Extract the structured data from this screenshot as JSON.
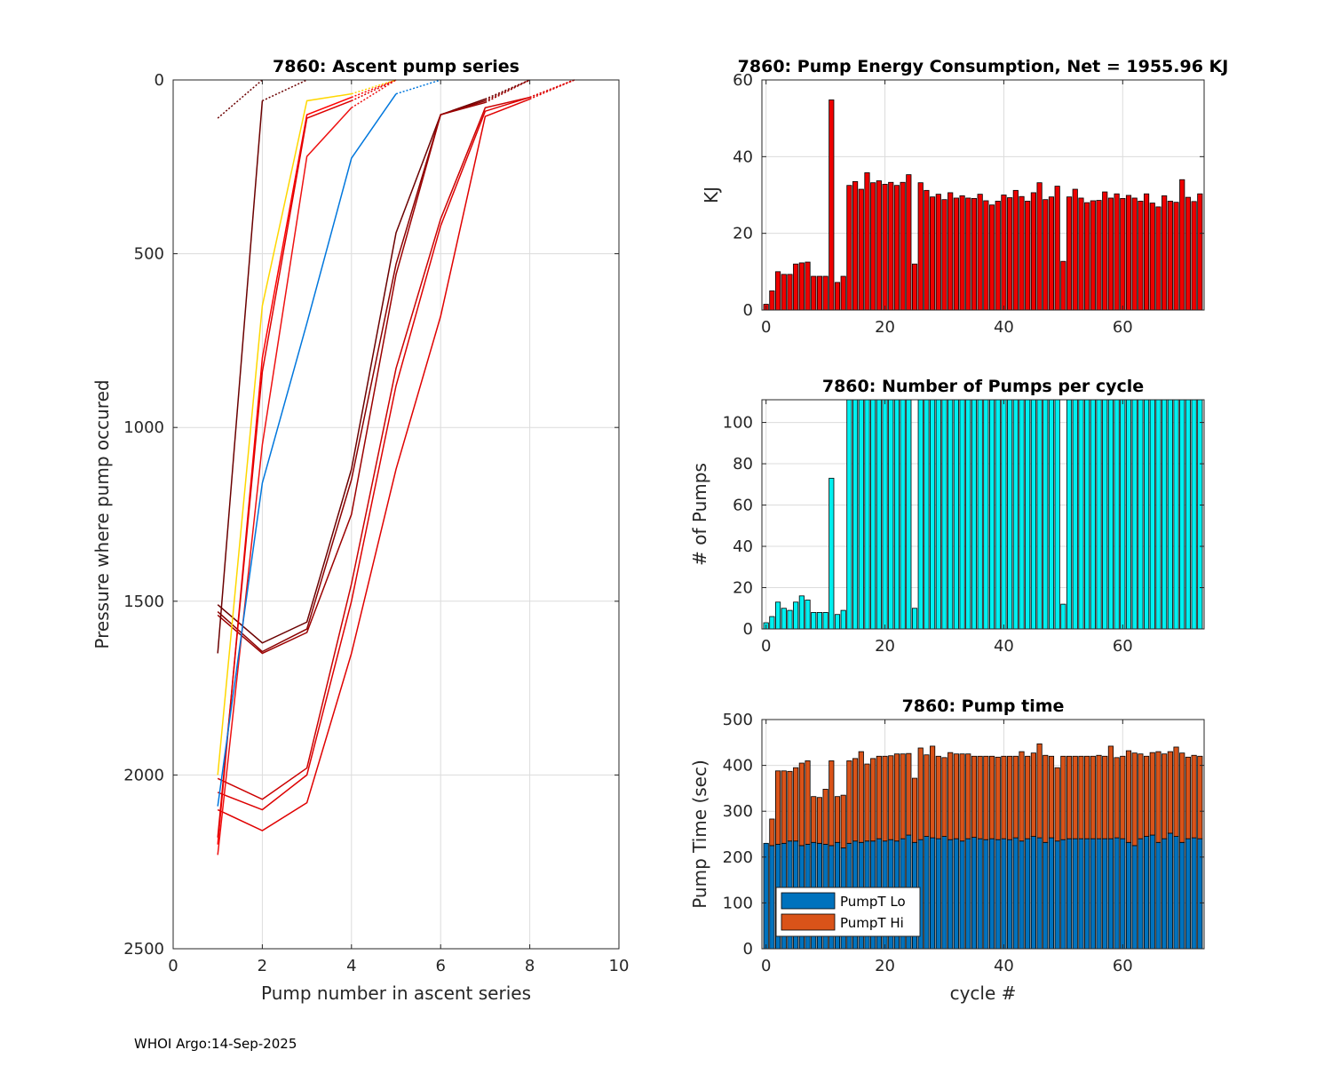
{
  "footer": "WHOI Argo:14-Sep-2025",
  "chart_data": [
    {
      "type": "line",
      "title": "7860: Ascent pump series",
      "xlabel": "Pump number in ascent series",
      "ylabel": "Pressure where pump occured",
      "xlim": [
        0,
        10
      ],
      "ylim": [
        0,
        2500
      ],
      "y_reversed": true,
      "xticks": [
        0,
        2,
        4,
        6,
        8,
        10
      ],
      "yticks": [
        0,
        500,
        1000,
        1500,
        2000,
        2500
      ],
      "grid": true,
      "series": [
        {
          "color": "#6b0000",
          "x": [
            1,
            2,
            3,
            4,
            5,
            6,
            7,
            8
          ],
          "y": [
            1510,
            1620,
            1560,
            1120,
            440,
            100,
            55,
            0
          ]
        },
        {
          "color": "#8b0000",
          "x": [
            1,
            2,
            3,
            4,
            5,
            6,
            7,
            8
          ],
          "y": [
            1530,
            1645,
            1580,
            1150,
            530,
            100,
            60,
            0
          ]
        },
        {
          "color": "#9b0000",
          "x": [
            1,
            2,
            3,
            4,
            5,
            6,
            7,
            8
          ],
          "y": [
            1540,
            1650,
            1590,
            1250,
            560,
            100,
            65,
            0
          ]
        },
        {
          "color": "#6b0000",
          "x": [
            1,
            2,
            3
          ],
          "y": [
            1650,
            60,
            0
          ]
        },
        {
          "color": "#6b0000",
          "x": [
            1,
            2
          ],
          "y": [
            110,
            0
          ]
        },
        {
          "color": "#cc0000",
          "x": [
            1,
            2,
            3,
            4,
            5,
            6,
            7,
            8,
            9
          ],
          "y": [
            2010,
            2070,
            1980,
            1450,
            830,
            400,
            80,
            50,
            0
          ]
        },
        {
          "color": "#dd0000",
          "x": [
            1,
            2,
            3,
            4,
            5,
            6,
            7,
            8,
            9
          ],
          "y": [
            2050,
            2100,
            2000,
            1500,
            880,
            420,
            90,
            50,
            0
          ]
        },
        {
          "color": "#e00000",
          "x": [
            1,
            2,
            3,
            4,
            5,
            6,
            7,
            8,
            9
          ],
          "y": [
            2100,
            2160,
            2080,
            1650,
            1120,
            680,
            105,
            55,
            0
          ]
        },
        {
          "color": "#ff0000",
          "x": [
            1,
            2,
            3,
            4,
            5
          ],
          "y": [
            2200,
            800,
            100,
            50,
            0
          ]
        },
        {
          "color": "#ee1111",
          "x": [
            1,
            2,
            3,
            4,
            5
          ],
          "y": [
            2230,
            1050,
            220,
            80,
            0
          ]
        },
        {
          "color": "#dd0000",
          "x": [
            1,
            2,
            3,
            4,
            5
          ],
          "y": [
            2180,
            840,
            110,
            60,
            0
          ]
        },
        {
          "color": "#ffd700",
          "x": [
            1,
            2,
            3,
            4,
            5
          ],
          "y": [
            2000,
            650,
            60,
            40,
            0
          ]
        },
        {
          "color": "#0077dd",
          "x": [
            1,
            2,
            3,
            4,
            5,
            6
          ],
          "y": [
            2090,
            1160,
            700,
            225,
            40,
            0
          ]
        }
      ]
    },
    {
      "type": "bar",
      "title": "7860: Pump Energy Consumption,  Net = 1955.96 KJ",
      "ylabel": "KJ",
      "xlim": [
        -0.7,
        73.7
      ],
      "ylim": [
        0,
        60
      ],
      "xticks": [
        0,
        20,
        40,
        60
      ],
      "yticks": [
        0,
        20,
        40,
        60
      ],
      "grid": true,
      "bar_color": "#ee0000",
      "x_start": 0,
      "values": [
        1.5,
        5,
        10,
        9.3,
        9.3,
        12,
        12.3,
        12.5,
        8.8,
        8.8,
        8.8,
        54.8,
        7.2,
        8.8,
        32.5,
        33.5,
        31.5,
        35.8,
        33.2,
        33.7,
        32.8,
        33.3,
        32.5,
        33.3,
        35.3,
        12,
        33.2,
        31.2,
        29.5,
        30.2,
        28.8,
        30.6,
        29.2,
        29.8,
        29.2,
        29.1,
        30.2,
        28.5,
        27.4,
        28.4,
        30,
        29.3,
        31.2,
        29.6,
        28.4,
        30.6,
        33.2,
        28.8,
        29.5,
        32.3,
        12.7,
        29.5,
        31.5,
        29.2,
        28,
        28.5,
        28.6,
        30.8,
        29.2,
        30.3,
        29.1,
        29.9,
        29.2,
        28.4,
        30.3,
        27.9,
        26.9,
        29.8,
        28.4,
        28.1,
        34,
        29.4,
        28.3,
        30.3
      ]
    },
    {
      "type": "bar",
      "title": "7860: Number of Pumps per cycle",
      "ylabel": "# of Pumps",
      "xlim": [
        -0.7,
        73.7
      ],
      "ylim": [
        0,
        111
      ],
      "xticks": [
        0,
        20,
        40,
        60
      ],
      "yticks": [
        0,
        20,
        40,
        60,
        80,
        100
      ],
      "grid": true,
      "bar_color": "#00f0f0",
      "x_start": 0,
      "values": [
        3,
        6,
        13,
        10,
        9,
        13,
        16,
        14,
        8,
        8,
        8,
        73,
        7,
        9,
        111,
        111,
        111,
        111,
        111,
        111,
        111,
        111,
        111,
        111,
        111,
        10,
        111,
        111,
        111,
        111,
        111,
        111,
        111,
        111,
        111,
        111,
        111,
        111,
        111,
        111,
        111,
        111,
        111,
        111,
        111,
        111,
        111,
        111,
        111,
        111,
        12,
        111,
        111,
        111,
        111,
        111,
        111,
        111,
        111,
        111,
        111,
        111,
        111,
        111,
        111,
        111,
        111,
        111,
        111,
        111,
        111,
        111,
        111,
        111
      ]
    },
    {
      "type": "bar",
      "stacked": true,
      "title": "7860: Pump time",
      "xlabel": "cycle #",
      "ylabel": "Pump Time (sec)",
      "xlim": [
        -0.7,
        73.7
      ],
      "ylim": [
        0,
        500
      ],
      "xticks": [
        0,
        20,
        40,
        60
      ],
      "yticks": [
        0,
        100,
        200,
        300,
        400,
        500
      ],
      "grid": true,
      "legend": "bottom-left",
      "x_start": 0,
      "series": [
        {
          "name": "PumpT Lo",
          "color": "#0072bd",
          "values": [
            230,
            225,
            228,
            230,
            235,
            235,
            225,
            228,
            232,
            230,
            228,
            225,
            232,
            220,
            230,
            235,
            232,
            235,
            235,
            240,
            235,
            238,
            235,
            240,
            248,
            232,
            238,
            245,
            242,
            240,
            245,
            238,
            240,
            235,
            240,
            243,
            240,
            238,
            240,
            238,
            240,
            238,
            242,
            235,
            240,
            245,
            242,
            232,
            242,
            235,
            238,
            240,
            240,
            240,
            240,
            240,
            240,
            240,
            240,
            242,
            240,
            232,
            225,
            240,
            245,
            248,
            232,
            240,
            252,
            245,
            232,
            240,
            242,
            240
          ]
        },
        {
          "name": "PumpT Hi",
          "color": "#d95319",
          "values": [
            0,
            58,
            160,
            158,
            152,
            160,
            180,
            182,
            100,
            100,
            120,
            185,
            100,
            115,
            180,
            180,
            198,
            168,
            180,
            180,
            185,
            183,
            190,
            185,
            178,
            140,
            200,
            178,
            200,
            180,
            172,
            190,
            185,
            190,
            185,
            177,
            180,
            182,
            180,
            180,
            180,
            182,
            178,
            195,
            180,
            182,
            205,
            190,
            178,
            160,
            182,
            180,
            180,
            180,
            180,
            180,
            182,
            180,
            202,
            175,
            180,
            200,
            202,
            185,
            175,
            180,
            198,
            185,
            178,
            195,
            195,
            178,
            180,
            180
          ]
        }
      ]
    }
  ]
}
